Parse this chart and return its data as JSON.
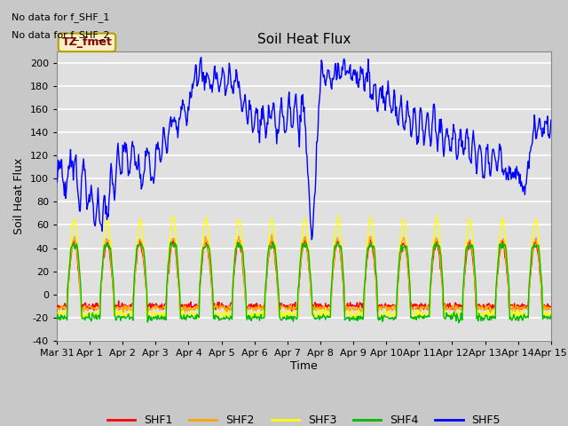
{
  "title": "Soil Heat Flux",
  "ylabel": "Soil Heat Flux",
  "xlabel": "Time",
  "ylim": [
    -40,
    210
  ],
  "xlim": [
    0,
    15
  ],
  "fig_facecolor": "#c8c8c8",
  "plot_bg_color": "#e0e0e0",
  "grid_color": "#f0f0f0",
  "annotation_text1": "No data for f_SHF_1",
  "annotation_text2": "No data for f_SHF_2",
  "legend_label_text": "TZ_fmet",
  "xtick_labels": [
    "Mar 31",
    "Apr 1",
    "Apr 2",
    "Apr 3",
    "Apr 4",
    "Apr 5",
    "Apr 6",
    "Apr 7",
    "Apr 8",
    "Apr 9",
    "Apr 10",
    "Apr 11",
    "Apr 12",
    "Apr 13",
    "Apr 14",
    "Apr 15"
  ],
  "ytick_values": [
    -40,
    -20,
    0,
    20,
    40,
    60,
    80,
    100,
    120,
    140,
    160,
    180,
    200
  ],
  "series_colors": {
    "SHF1": "#ff0000",
    "SHF2": "#ffa500",
    "SHF3": "#ffff00",
    "SHF4": "#00bb00",
    "SHF5": "#0000ff"
  },
  "line_width": 1.0
}
